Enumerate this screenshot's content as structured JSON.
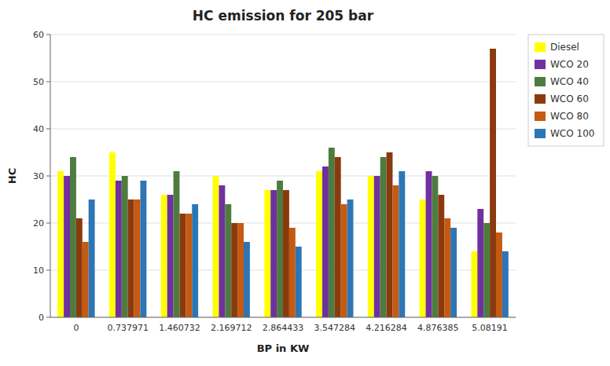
{
  "chart_data": {
    "type": "bar",
    "title": "HC emission for 205 bar",
    "xlabel": "BP in KW",
    "ylabel": "HC",
    "categories": [
      "0",
      "0.737971",
      "1.460732",
      "2.169712",
      "2.864433",
      "3.547284",
      "4.216284",
      "4.876385",
      "5.08191"
    ],
    "series": [
      {
        "name": "Diesel",
        "color": "#ffff00",
        "values": [
          31,
          35,
          26,
          30,
          27,
          31,
          30,
          25,
          14
        ]
      },
      {
        "name": "WCO 20",
        "color": "#7030a0",
        "values": [
          30,
          29,
          26,
          28,
          27,
          32,
          30,
          31,
          23
        ]
      },
      {
        "name": "WCO 40",
        "color": "#4e7c3f",
        "values": [
          34,
          30,
          31,
          24,
          29,
          36,
          34,
          30,
          20
        ]
      },
      {
        "name": "WCO 60",
        "color": "#8B3A0F",
        "values": [
          21,
          25,
          22,
          20,
          27,
          34,
          35,
          26,
          57
        ]
      },
      {
        "name": "WCO 80",
        "color": "#c55a11",
        "values": [
          16,
          25,
          22,
          20,
          19,
          24,
          28,
          21,
          18
        ]
      },
      {
        "name": "WCO 100",
        "color": "#2e75b6",
        "values": [
          25,
          29,
          24,
          16,
          15,
          25,
          31,
          19,
          14
        ]
      }
    ],
    "ylim": [
      0,
      60
    ],
    "yticks": [
      0,
      10,
      20,
      30,
      40,
      50,
      60
    ],
    "grid": true,
    "legend": "right"
  }
}
